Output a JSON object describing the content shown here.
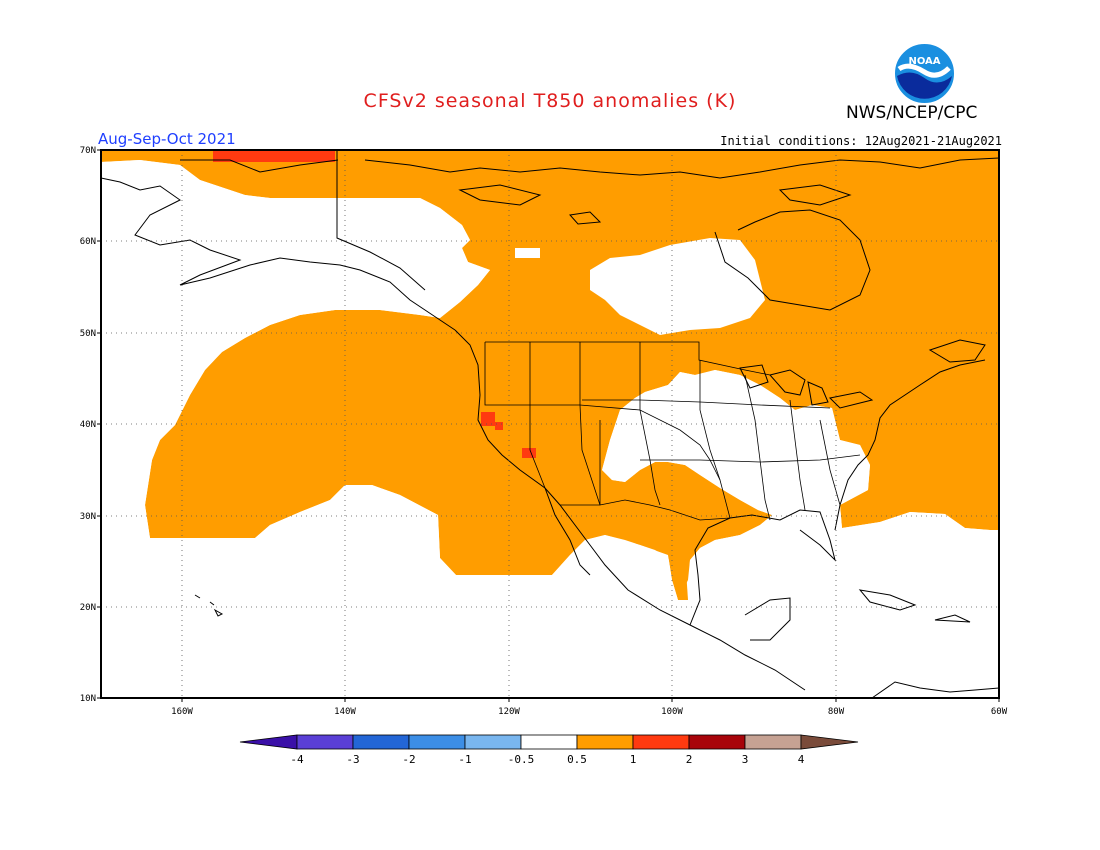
{
  "header": {
    "title": "CFSv2 seasonal T850 anomalies (K)",
    "org": "NWS/NCEP/CPC",
    "logo_text": "NOAA",
    "period": "Aug-Sep-Oct 2021",
    "initial_conditions": "Initial conditions: 12Aug2021-21Aug2021"
  },
  "map": {
    "lat_labels": [
      "70N",
      "60N",
      "50N",
      "40N",
      "30N",
      "20N",
      "10N"
    ],
    "lon_labels": [
      "160W",
      "140W",
      "120W",
      "100W",
      "80W",
      "60W"
    ],
    "lat_range": [
      10,
      70
    ],
    "lon_range": [
      -170,
      -60
    ]
  },
  "colorbar": {
    "labels": [
      "-4",
      "-3",
      "-2",
      "-1",
      "-0.5",
      "0.5",
      "1",
      "2",
      "3",
      "4"
    ],
    "colors": [
      "#3a10a8",
      "#5a3fd6",
      "#2366d6",
      "#3c8ee6",
      "#79b6ef",
      "#ffffff",
      "#ff9d00",
      "#ff3a10",
      "#a8040a",
      "#c6a293",
      "#7a4b3a"
    ]
  },
  "colors": {
    "anomaly_0_5_to_1": "#ff9d00",
    "anomaly_1_to_2": "#ff3a10"
  }
}
